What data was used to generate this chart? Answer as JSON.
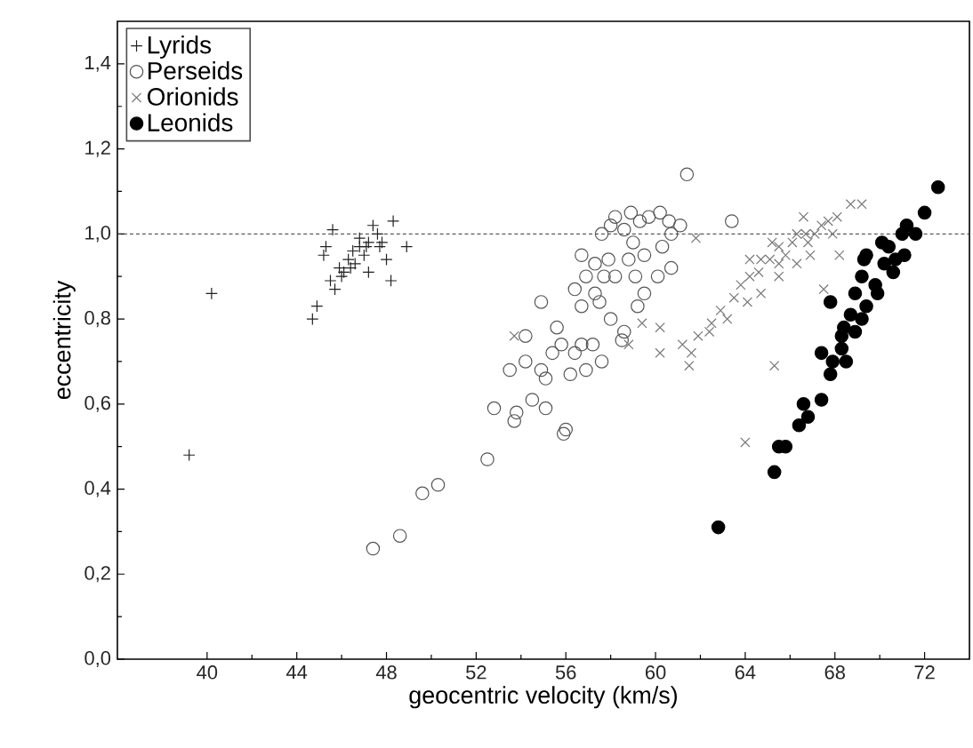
{
  "chart_data": {
    "type": "scatter",
    "xlabel": "geocentric velocity (km/s)",
    "ylabel": "eccentricity",
    "xlim": [
      36,
      74
    ],
    "ylim": [
      0,
      1.5
    ],
    "xticks": [
      40,
      44,
      48,
      52,
      56,
      60,
      64,
      68,
      72
    ],
    "yticks": [
      {
        "value": 0,
        "label": "0,0"
      },
      {
        "value": 0.2,
        "label": "0,2"
      },
      {
        "value": 0.4,
        "label": "0,4"
      },
      {
        "value": 0.6,
        "label": "0,6"
      },
      {
        "value": 0.8,
        "label": "0,8"
      },
      {
        "value": 1.0,
        "label": "1,0"
      },
      {
        "value": 1.2,
        "label": "1,2"
      },
      {
        "value": 1.4,
        "label": "1,4"
      }
    ],
    "legend": "top left",
    "grid": false,
    "ref_lines": [
      {
        "axis": "y",
        "value": 1.0,
        "line_style": "dashed",
        "color": "#333333"
      }
    ],
    "series": [
      {
        "name": "Lyrids",
        "color": "#222222",
        "marker": "plus",
        "x": [
          39.2,
          40.2,
          44.7,
          44.9,
          45.6,
          45.3,
          45.2,
          45.5,
          45.7,
          45.9,
          46.1,
          46.3,
          46.5,
          46.8,
          47.0,
          47.2,
          47.4,
          47.6,
          47.8,
          48.0,
          48.2,
          48.3,
          48.9,
          47.2,
          46.4,
          46.0,
          47.1,
          46.6,
          47.7,
          46.8
        ],
        "values": [
          0.48,
          0.86,
          0.8,
          0.83,
          1.01,
          0.97,
          0.95,
          0.89,
          0.87,
          0.92,
          0.91,
          0.94,
          0.96,
          0.97,
          0.95,
          0.98,
          1.02,
          1.0,
          0.98,
          0.94,
          0.89,
          1.03,
          0.97,
          0.91,
          0.92,
          0.9,
          0.97,
          0.93,
          0.97,
          0.99
        ]
      },
      {
        "name": "Perseids",
        "color": "#555555",
        "marker": "circle",
        "x": [
          47.4,
          48.6,
          49.6,
          50.3,
          52.5,
          52.8,
          53.5,
          53.7,
          53.8,
          54.2,
          54.2,
          54.5,
          55.1,
          54.9,
          55.1,
          54.9,
          55.6,
          55.8,
          56.0,
          55.9,
          56.2,
          56.4,
          55.4,
          56.9,
          57.6,
          56.7,
          57.2,
          56.7,
          56.4,
          56.7,
          56.9,
          57.3,
          57.6,
          58.0,
          58.2,
          58.6,
          58.9,
          59.3,
          59.7,
          60.2,
          60.6,
          61.1,
          60.7,
          60.3,
          60.7,
          60.1,
          59.5,
          59.2,
          58.6,
          58.5,
          58.0,
          57.5,
          58.2,
          58.8,
          59.0,
          59.5,
          57.9,
          57.3,
          61.4,
          63.4,
          59.1,
          57.7
        ],
        "values": [
          0.26,
          0.29,
          0.39,
          0.41,
          0.47,
          0.59,
          0.68,
          0.56,
          0.58,
          0.7,
          0.76,
          0.61,
          0.59,
          0.84,
          0.66,
          0.68,
          0.78,
          0.74,
          0.54,
          0.53,
          0.67,
          0.72,
          0.72,
          0.68,
          0.7,
          0.74,
          0.74,
          0.83,
          0.87,
          0.95,
          0.9,
          0.93,
          1.0,
          1.02,
          1.04,
          1.01,
          1.05,
          1.03,
          1.04,
          1.05,
          1.03,
          1.02,
          1.0,
          0.97,
          0.92,
          0.9,
          0.86,
          0.83,
          0.77,
          0.75,
          0.8,
          0.84,
          0.9,
          0.94,
          0.98,
          0.95,
          0.94,
          0.86,
          1.14,
          1.03,
          0.9,
          0.9
        ]
      },
      {
        "name": "Orionids",
        "color": "#777777",
        "marker": "cross",
        "x": [
          64.0,
          65.3,
          53.7,
          58.8,
          60.2,
          60.2,
          59.4,
          61.5,
          61.8,
          69.2,
          68.7,
          68.2,
          67.5,
          66.6,
          61.2,
          61.9,
          62.5,
          62.9,
          63.5,
          63.8,
          64.2,
          64.6,
          64.7,
          65.1,
          65.5,
          65.8,
          66.1,
          66.3,
          66.7,
          67.1,
          67.4,
          67.7,
          68.1,
          67.9,
          66.9,
          66.3,
          65.5,
          64.7,
          64.1,
          63.2,
          62.4,
          61.6,
          65.5,
          64.2,
          65.2,
          66.8
        ],
        "values": [
          0.51,
          0.69,
          0.76,
          0.74,
          0.78,
          0.72,
          0.79,
          0.69,
          0.99,
          1.07,
          1.07,
          0.95,
          0.87,
          1.04,
          0.74,
          0.76,
          0.79,
          0.82,
          0.85,
          0.88,
          0.9,
          0.91,
          0.94,
          0.94,
          0.97,
          0.95,
          0.98,
          1.0,
          1.0,
          1.0,
          1.02,
          1.03,
          1.04,
          1.0,
          0.95,
          0.93,
          0.9,
          0.86,
          0.84,
          0.8,
          0.77,
          0.72,
          0.93,
          0.94,
          0.98,
          0.98
        ]
      },
      {
        "name": "Leonids",
        "color": "#000000",
        "marker": "filled circle",
        "x": [
          62.8,
          65.3,
          65.5,
          65.8,
          66.4,
          66.6,
          66.8,
          67.4,
          67.4,
          67.8,
          67.8,
          68.3,
          68.4,
          68.7,
          68.9,
          69.2,
          69.3,
          69.4,
          69.8,
          70.1,
          70.2,
          70.4,
          70.7,
          71.0,
          71.2,
          71.6,
          72.0,
          72.6,
          69.9,
          70.6,
          71.1,
          69.2,
          69.4,
          68.9,
          68.5,
          67.9,
          68.3
        ],
        "values": [
          0.31,
          0.44,
          0.5,
          0.5,
          0.55,
          0.6,
          0.57,
          0.61,
          0.72,
          0.67,
          0.84,
          0.73,
          0.78,
          0.81,
          0.86,
          0.9,
          0.94,
          0.83,
          0.88,
          0.98,
          0.93,
          0.97,
          0.94,
          1.0,
          1.02,
          1.0,
          1.05,
          1.11,
          0.86,
          0.91,
          0.95,
          0.8,
          0.95,
          0.77,
          0.7,
          0.7,
          0.76
        ]
      }
    ]
  }
}
